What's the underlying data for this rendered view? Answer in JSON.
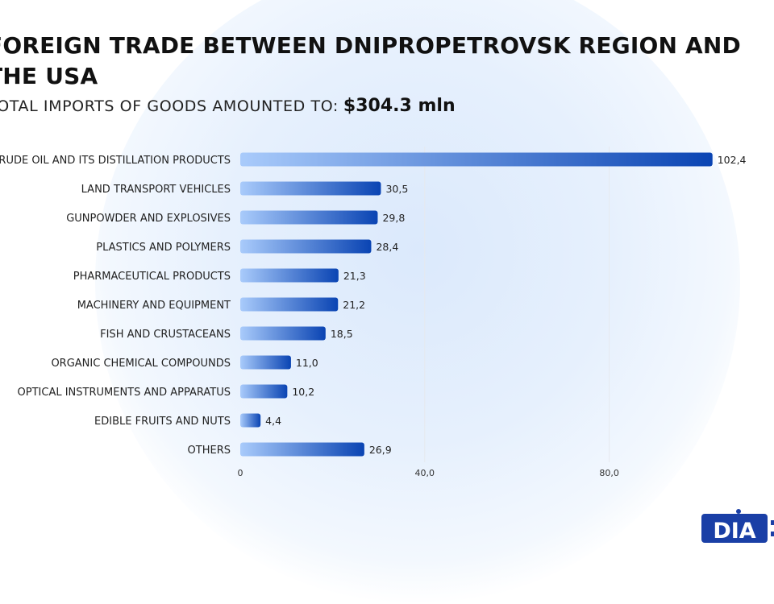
{
  "header": {
    "title": "FOREIGN TRADE BETWEEN DNIPROPETROVSK REGION AND THE USA",
    "subtitle_label": "TOTAL IMPORTS OF GOODS AMOUNTED TO:",
    "subtitle_value": "$304.3 mln"
  },
  "logo": {
    "text": "DIA",
    "icon": "dia-logo-icon"
  },
  "colors": {
    "bar_light": "#a9cbfb",
    "bar_dark": "#0a44b3",
    "title": "#111111",
    "text": "#222222",
    "grid": "#e6e9ee",
    "logo": "#1a3fa6"
  },
  "chart_data": {
    "type": "bar",
    "orientation": "horizontal",
    "categories": [
      "CRUDE OIL AND ITS DISTILLATION PRODUCTS",
      "LAND TRANSPORT VEHICLES",
      "GUNPOWDER AND EXPLOSIVES",
      "PLASTICS AND POLYMERS",
      "PHARMACEUTICAL PRODUCTS",
      "MACHINERY AND EQUIPMENT",
      "FISH AND CRUSTACEANS",
      "ORGANIC CHEMICAL COMPOUNDS",
      "OPTICAL INSTRUMENTS AND APPARATUS",
      "EDIBLE FRUITS AND NUTS",
      "OTHERS"
    ],
    "values": [
      102.4,
      30.5,
      29.8,
      28.4,
      21.3,
      21.2,
      18.5,
      11.0,
      10.2,
      4.4,
      26.9
    ],
    "value_labels": [
      "102,4",
      "30,5",
      "29,8",
      "28,4",
      "21,3",
      "21,2",
      "18,5",
      "11,0",
      "10,2",
      "4,4",
      "26,9"
    ],
    "x_ticks": [
      0,
      40,
      80
    ],
    "x_tick_labels": [
      "0",
      "40,0",
      "80,0"
    ],
    "xlim": [
      0,
      113
    ],
    "grid": true,
    "legend": "none"
  }
}
